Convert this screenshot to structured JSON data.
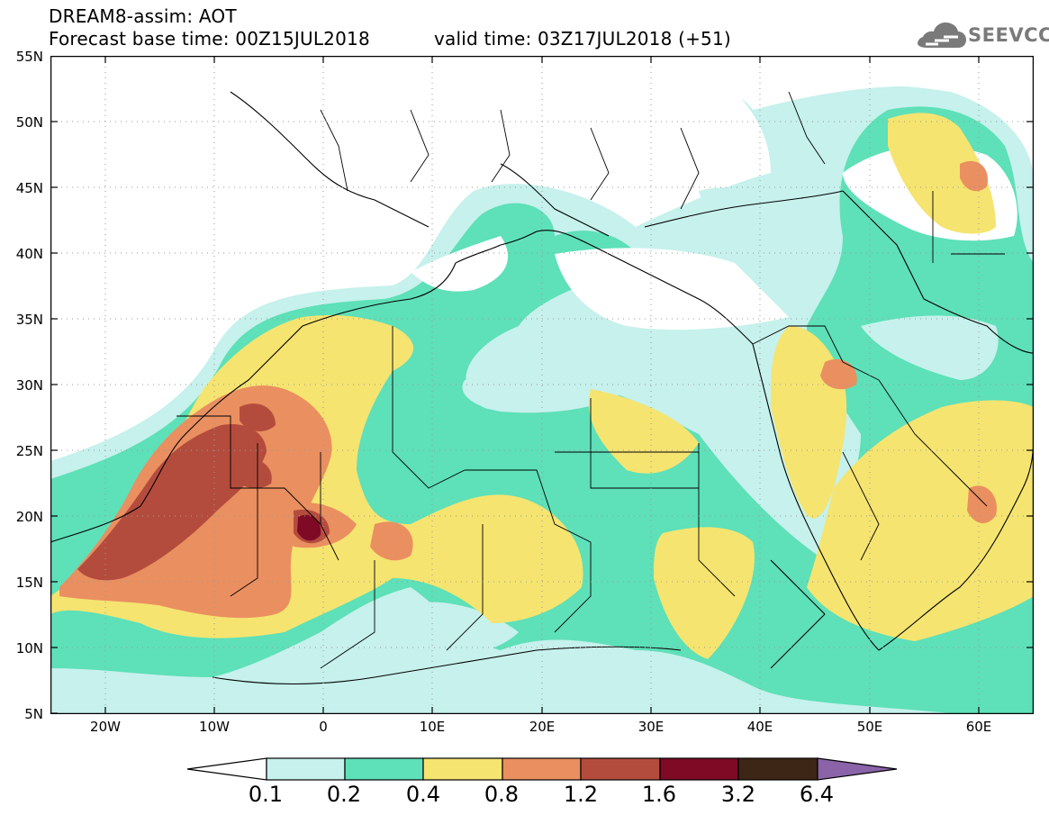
{
  "header": {
    "line1": "DREAM8-assim: AOT",
    "line2_left": "Forecast base time: 00Z15JUL2018",
    "line2_right": "valid time: 03Z17JUL2018 (+51)"
  },
  "logo": {
    "text": "SEEVCCC",
    "icon": "cloud-icon"
  },
  "map": {
    "lat_labels": [
      "55N",
      "50N",
      "45N",
      "40N",
      "35N",
      "30N",
      "25N",
      "20N",
      "15N",
      "10N",
      "5N"
    ],
    "lon_labels": [
      "20W",
      "10W",
      "0",
      "10E",
      "20E",
      "30E",
      "40E",
      "50E",
      "60E"
    ],
    "lon_range": [
      -25,
      65
    ],
    "lat_range": [
      5,
      55
    ],
    "grid": true
  },
  "colorbar": {
    "labels": [
      "0.1",
      "0.2",
      "0.4",
      "0.8",
      "1.2",
      "1.6",
      "3.2",
      "6.4"
    ],
    "colors": [
      "#c6f1ec",
      "#5ee0b8",
      "#f5e470",
      "#ea8f60",
      "#b44c3e",
      "#7e0a26",
      "#3d2616",
      "#8a63a8"
    ]
  }
}
